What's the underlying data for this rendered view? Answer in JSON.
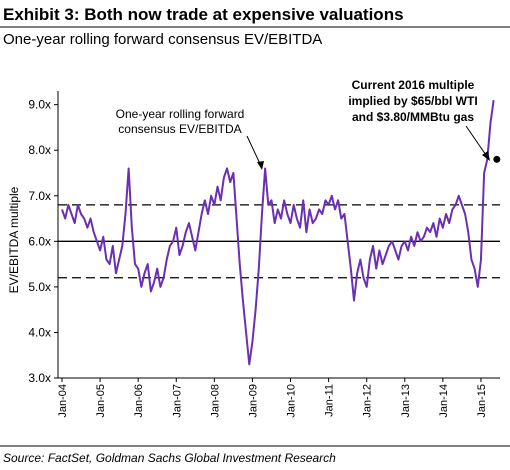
{
  "chart_data": {
    "type": "line",
    "title": "Exhibit 3: Both now trade at expensive valuations",
    "subtitle": "One-year rolling forward consensus EV/EBITDA",
    "y_label": "EV/EBITDA multiple",
    "source": "Source: FactSet, Goldman Sachs Global Investment Research",
    "color": "#6b2fb3",
    "x": [
      "2004-01",
      "2004-02",
      "2004-03",
      "2004-04",
      "2004-05",
      "2004-06",
      "2004-07",
      "2004-08",
      "2004-09",
      "2004-10",
      "2004-11",
      "2004-12",
      "2005-01",
      "2005-02",
      "2005-03",
      "2005-04",
      "2005-05",
      "2005-06",
      "2005-07",
      "2005-08",
      "2005-09",
      "2005-10",
      "2005-11",
      "2005-12",
      "2006-01",
      "2006-02",
      "2006-03",
      "2006-04",
      "2006-05",
      "2006-06",
      "2006-07",
      "2006-08",
      "2006-09",
      "2006-10",
      "2006-11",
      "2006-12",
      "2007-01",
      "2007-02",
      "2007-03",
      "2007-04",
      "2007-05",
      "2007-06",
      "2007-07",
      "2007-08",
      "2007-09",
      "2007-10",
      "2007-11",
      "2007-12",
      "2008-01",
      "2008-02",
      "2008-03",
      "2008-04",
      "2008-05",
      "2008-06",
      "2008-07",
      "2008-08",
      "2008-09",
      "2008-10",
      "2008-11",
      "2008-12",
      "2009-01",
      "2009-02",
      "2009-03",
      "2009-04",
      "2009-05",
      "2009-06",
      "2009-07",
      "2009-08",
      "2009-09",
      "2009-10",
      "2009-11",
      "2009-12",
      "2010-01",
      "2010-02",
      "2010-03",
      "2010-04",
      "2010-05",
      "2010-06",
      "2010-07",
      "2010-08",
      "2010-09",
      "2010-10",
      "2010-11",
      "2010-12",
      "2011-01",
      "2011-02",
      "2011-03",
      "2011-04",
      "2011-05",
      "2011-06",
      "2011-07",
      "2011-08",
      "2011-09",
      "2011-10",
      "2011-11",
      "2011-12",
      "2012-01",
      "2012-02",
      "2012-03",
      "2012-04",
      "2012-05",
      "2012-06",
      "2012-07",
      "2012-08",
      "2012-09",
      "2012-10",
      "2012-11",
      "2012-12",
      "2013-01",
      "2013-02",
      "2013-03",
      "2013-04",
      "2013-05",
      "2013-06",
      "2013-07",
      "2013-08",
      "2013-09",
      "2013-10",
      "2013-11",
      "2013-12",
      "2014-01",
      "2014-02",
      "2014-03",
      "2014-04",
      "2014-05",
      "2014-06",
      "2014-07",
      "2014-08",
      "2014-09",
      "2014-10",
      "2014-11",
      "2014-12",
      "2015-01",
      "2015-02",
      "2015-03",
      "2015-04",
      "2015-05"
    ],
    "values": [
      6.7,
      6.5,
      6.8,
      6.6,
      6.4,
      6.8,
      6.6,
      6.5,
      6.3,
      6.5,
      6.2,
      6.0,
      5.8,
      6.1,
      5.6,
      5.5,
      5.9,
      5.3,
      5.6,
      5.9,
      6.6,
      7.6,
      6.3,
      5.5,
      5.4,
      5.0,
      5.3,
      5.5,
      4.9,
      5.1,
      5.4,
      5.0,
      5.2,
      5.6,
      5.9,
      6.0,
      6.3,
      5.7,
      5.9,
      6.2,
      6.4,
      6.1,
      5.8,
      6.2,
      6.6,
      6.9,
      6.6,
      7.0,
      6.8,
      7.2,
      6.9,
      7.4,
      7.6,
      7.3,
      7.5,
      6.5,
      5.5,
      4.7,
      4.0,
      3.3,
      3.8,
      4.5,
      5.4,
      6.6,
      7.6,
      6.8,
      6.9,
      6.4,
      6.7,
      6.5,
      6.9,
      6.6,
      6.4,
      6.8,
      6.5,
      6.3,
      6.9,
      6.2,
      6.7,
      6.4,
      6.5,
      6.7,
      6.6,
      6.9,
      6.8,
      7.0,
      6.7,
      6.9,
      6.5,
      6.6,
      6.0,
      5.4,
      4.7,
      5.3,
      5.6,
      5.2,
      5.0,
      5.6,
      5.9,
      5.4,
      5.8,
      5.5,
      5.7,
      5.9,
      6.0,
      5.8,
      5.6,
      5.9,
      6.0,
      5.8,
      6.1,
      5.9,
      6.2,
      6.0,
      6.1,
      6.3,
      6.2,
      6.4,
      6.1,
      6.5,
      6.3,
      6.6,
      6.4,
      6.7,
      6.8,
      7.0,
      6.8,
      6.6,
      6.2,
      5.6,
      5.4,
      5.0,
      5.6,
      7.5,
      7.8,
      8.6,
      9.1
    ],
    "xlim": [
      "2004-01",
      "2015-07"
    ],
    "xticks": [
      {
        "value": "2004-01",
        "label": "Jan-04"
      },
      {
        "value": "2005-01",
        "label": "Jan-05"
      },
      {
        "value": "2006-01",
        "label": "Jan-06"
      },
      {
        "value": "2007-01",
        "label": "Jan-07"
      },
      {
        "value": "2008-01",
        "label": "Jan-08"
      },
      {
        "value": "2009-01",
        "label": "Jan-09"
      },
      {
        "value": "2010-01",
        "label": "Jan-10"
      },
      {
        "value": "2011-01",
        "label": "Jan-11"
      },
      {
        "value": "2012-01",
        "label": "Jan-12"
      },
      {
        "value": "2013-01",
        "label": "Jan-13"
      },
      {
        "value": "2014-01",
        "label": "Jan-14"
      },
      {
        "value": "2015-01",
        "label": "Jan-15"
      }
    ],
    "ylim": [
      3,
      9.3
    ],
    "yticks": [
      {
        "value": 3,
        "label": "3.0x"
      },
      {
        "value": 4,
        "label": "4.0x"
      },
      {
        "value": 5,
        "label": "5.0x"
      },
      {
        "value": 6,
        "label": "6.0x"
      },
      {
        "value": 7,
        "label": "7.0x"
      },
      {
        "value": 8,
        "label": "8.0x"
      },
      {
        "value": 9,
        "label": "9.0x"
      }
    ],
    "reference_lines": [
      {
        "value": 6.8,
        "dashed": true
      },
      {
        "value": 6.0,
        "dashed": false
      },
      {
        "value": 5.2,
        "dashed": true
      }
    ],
    "marker": {
      "x": "2015-06",
      "value": 7.8
    },
    "annotations": [
      {
        "lines": [
          "One-year rolling forward",
          "consensus EV/EBITDA"
        ]
      },
      {
        "lines": [
          "Current 2016 multiple",
          "implied by $65/bbl WTI",
          "and $3.80/MMBtu gas"
        ]
      }
    ]
  }
}
